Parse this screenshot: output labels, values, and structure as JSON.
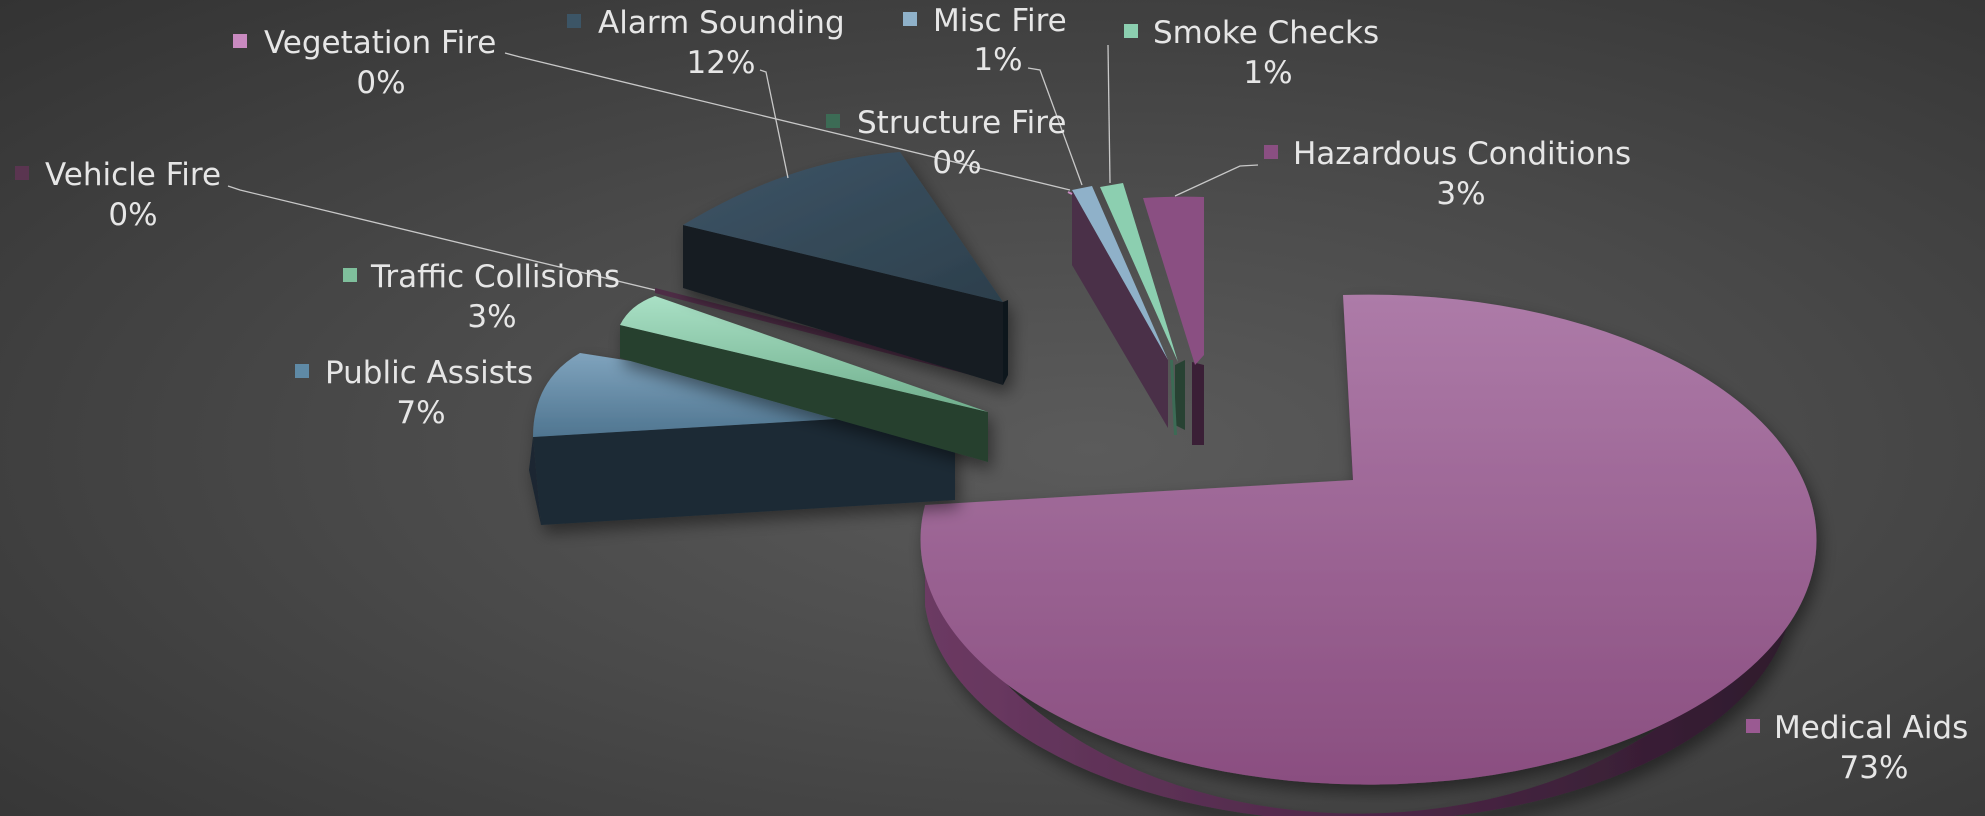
{
  "chart_data": {
    "type": "pie",
    "title": "",
    "style": "3d-exploded",
    "legend": "none",
    "series": [
      {
        "label": "Medical Aids",
        "percent_label": "73%",
        "value": 73,
        "color": "#9a5a92"
      },
      {
        "label": "Hazardous Conditions",
        "percent_label": "3%",
        "value": 3,
        "color": "#8a4f82"
      },
      {
        "label": "Smoke Checks",
        "percent_label": "1%",
        "value": 1,
        "color": "#8ccfb0"
      },
      {
        "label": "Misc Fire",
        "percent_label": "1%",
        "value": 1,
        "color": "#8fb1c9"
      },
      {
        "label": "Structure Fire",
        "percent_label": "0%",
        "value": 0,
        "color": "#3c6b55"
      },
      {
        "label": "Vegetation Fire",
        "percent_label": "0%",
        "value": 0,
        "color": "#c98ac0"
      },
      {
        "label": "Alarm Sounding",
        "percent_label": "12%",
        "value": 12,
        "color": "#3c5566"
      },
      {
        "label": "Vehicle Fire",
        "percent_label": "0%",
        "value": 0,
        "color": "#5a3550"
      },
      {
        "label": "Traffic Collisions",
        "percent_label": "3%",
        "value": 3,
        "color": "#7fbf9c"
      },
      {
        "label": "Public Assists",
        "percent_label": "7%",
        "value": 7,
        "color": "#5f8aa6"
      }
    ]
  }
}
